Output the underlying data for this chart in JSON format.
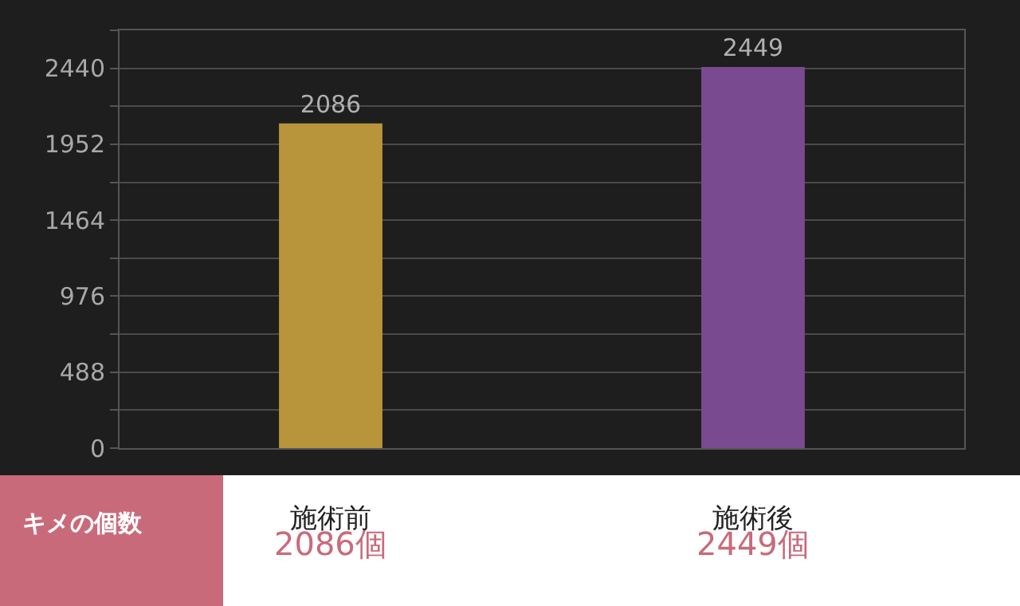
{
  "chart_data": {
    "type": "bar",
    "categories": [
      "施術前",
      "施術後"
    ],
    "values": [
      2086,
      2449
    ],
    "colors": [
      "#b8943a",
      "#7a4a90"
    ],
    "ylim": [
      0,
      2684
    ],
    "yticks": [
      0,
      {
        "value": 244,
        "label": null
      },
      488,
      {
        "value": 732,
        "label": null
      },
      976,
      {
        "value": 1220,
        "label": null
      },
      1464,
      {
        "value": 1708,
        "label": null
      },
      1952,
      {
        "value": 2196,
        "label": null
      },
      2440,
      {
        "value": 2684,
        "label": null
      }
    ],
    "grid": "y",
    "data_labels": true,
    "annotations": [
      "キメの個数",
      "2086個",
      "2449個"
    ]
  }
}
